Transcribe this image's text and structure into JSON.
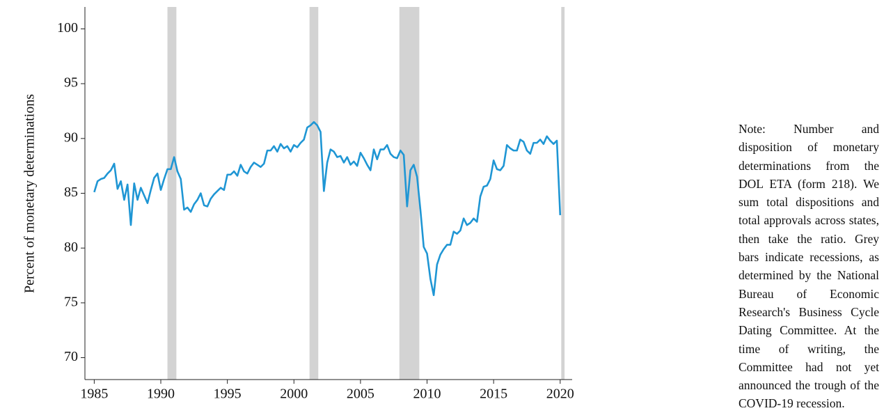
{
  "chart_data": {
    "type": "line",
    "y_label": "Percent of monetary determinations",
    "note": "Note: Number and disposition of monetary determinations from the DOL ETA (form 218). We sum total dispositions and total approvals across states, then take the ratio. Grey bars indicate recessions, as determined by the National Bureau of Economic Research's Business Cycle Dating Committee. At the time of writing, the Committee had not yet announced the trough of the COVID-19 recession.",
    "color": "#1f96d4",
    "recession_color": "#d3d3d3",
    "recessions": [
      [
        1990.5,
        1991.17
      ],
      [
        2001.17,
        2001.83
      ],
      [
        2007.92,
        2009.42
      ],
      [
        2020.08,
        2020.33
      ]
    ],
    "x": [
      1985,
      1985.25,
      1985.5,
      1985.75,
      1986,
      1986.25,
      1986.5,
      1986.75,
      1987,
      1987.25,
      1987.5,
      1987.75,
      1988,
      1988.25,
      1988.5,
      1988.75,
      1989,
      1989.25,
      1989.5,
      1989.75,
      1990,
      1990.25,
      1990.5,
      1990.75,
      1991,
      1991.25,
      1991.5,
      1991.75,
      1992,
      1992.25,
      1992.5,
      1992.75,
      1993,
      1993.25,
      1993.5,
      1993.75,
      1994,
      1994.25,
      1994.5,
      1994.75,
      1995,
      1995.25,
      1995.5,
      1995.75,
      1996,
      1996.25,
      1996.5,
      1996.75,
      1997,
      1997.25,
      1997.5,
      1997.75,
      1998,
      1998.25,
      1998.5,
      1998.75,
      1999,
      1999.25,
      1999.5,
      1999.75,
      2000,
      2000.25,
      2000.5,
      2000.75,
      2001,
      2001.25,
      2001.5,
      2001.75,
      2002,
      2002.25,
      2002.5,
      2002.75,
      2003,
      2003.25,
      2003.5,
      2003.75,
      2004,
      2004.25,
      2004.5,
      2004.75,
      2005,
      2005.25,
      2005.5,
      2005.75,
      2006,
      2006.25,
      2006.5,
      2006.75,
      2007,
      2007.25,
      2007.5,
      2007.75,
      2008,
      2008.25,
      2008.5,
      2008.75,
      2009,
      2009.25,
      2009.5,
      2009.75,
      2010,
      2010.25,
      2010.5,
      2010.75,
      2011,
      2011.25,
      2011.5,
      2011.75,
      2012,
      2012.25,
      2012.5,
      2012.75,
      2013,
      2013.25,
      2013.5,
      2013.75,
      2014,
      2014.25,
      2014.5,
      2014.75,
      2015,
      2015.25,
      2015.5,
      2015.75,
      2016,
      2016.25,
      2016.5,
      2016.75,
      2017,
      2017.25,
      2017.5,
      2017.75,
      2018,
      2018.25,
      2018.5,
      2018.75,
      2019,
      2019.25,
      2019.5,
      2019.75,
      2020
    ],
    "values": [
      85.1,
      86.1,
      86.3,
      86.4,
      86.8,
      87.1,
      87.7,
      85.4,
      86.1,
      84.4,
      85.8,
      82.1,
      85.9,
      84.4,
      85.5,
      84.8,
      84.1,
      85.3,
      86.4,
      86.8,
      85.3,
      86.3,
      87.2,
      87.2,
      88.3,
      87.0,
      86.3,
      83.5,
      83.7,
      83.3,
      84.0,
      84.4,
      85.0,
      83.9,
      83.8,
      84.5,
      84.9,
      85.2,
      85.5,
      85.3,
      86.7,
      86.7,
      87.0,
      86.6,
      87.6,
      87.0,
      86.8,
      87.4,
      87.8,
      87.6,
      87.4,
      87.7,
      88.9,
      88.9,
      89.3,
      88.8,
      89.5,
      89.1,
      89.3,
      88.8,
      89.4,
      89.2,
      89.6,
      89.9,
      91.0,
      91.2,
      91.5,
      91.2,
      90.6,
      85.2,
      87.8,
      89.0,
      88.8,
      88.3,
      88.4,
      87.8,
      88.3,
      87.6,
      87.9,
      87.5,
      88.7,
      88.2,
      87.6,
      87.1,
      89.0,
      88.1,
      89.0,
      89.0,
      89.4,
      88.6,
      88.3,
      88.2,
      88.9,
      88.5,
      83.8,
      87.1,
      87.6,
      86.5,
      83.5,
      80.1,
      79.5,
      77.2,
      75.7,
      78.5,
      79.4,
      79.9,
      80.3,
      80.3,
      81.5,
      81.3,
      81.6,
      82.7,
      82.1,
      82.3,
      82.7,
      82.4,
      84.7,
      85.6,
      85.7,
      86.3,
      88.0,
      87.2,
      87.1,
      87.5,
      89.4,
      89.1,
      88.9,
      88.9,
      89.9,
      89.7,
      88.9,
      88.6,
      89.6,
      89.6,
      89.9,
      89.5,
      90.2,
      89.8,
      89.5,
      89.8,
      83.0
    ],
    "xlim": [
      1984.3,
      2020.9
    ],
    "xticks": [
      1985,
      1990,
      1995,
      2000,
      2005,
      2010,
      2015,
      2020
    ],
    "ylim": [
      68,
      102
    ],
    "yticks": [
      70,
      75,
      80,
      85,
      90,
      95,
      100
    ]
  }
}
